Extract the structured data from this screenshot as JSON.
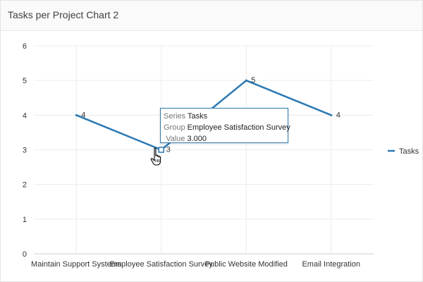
{
  "region": {
    "title": "Tasks per Project Chart 2"
  },
  "chart_data": {
    "type": "line",
    "categories": [
      "Maintain Support Systems",
      "Employee Satisfaction Survey",
      "Public Website Modified",
      "Email Integration"
    ],
    "series": [
      {
        "name": "Tasks",
        "values": [
          4,
          3,
          5,
          4
        ],
        "color": "#2b79b4"
      }
    ],
    "ylim": [
      0,
      6
    ],
    "yticks": [
      0,
      1,
      2,
      3,
      4,
      5,
      6
    ],
    "grid": true,
    "legend": "right",
    "data_labels": true,
    "title": "",
    "xlabel": "",
    "ylabel": ""
  },
  "tooltip": {
    "series_key": "Series",
    "series_value": "Tasks",
    "group_key": "Group",
    "group_value": "Employee Satisfaction Survey",
    "value_key": "Value",
    "value_value": "3.000"
  },
  "cursor": {
    "icon": "hand-pointer-icon"
  }
}
